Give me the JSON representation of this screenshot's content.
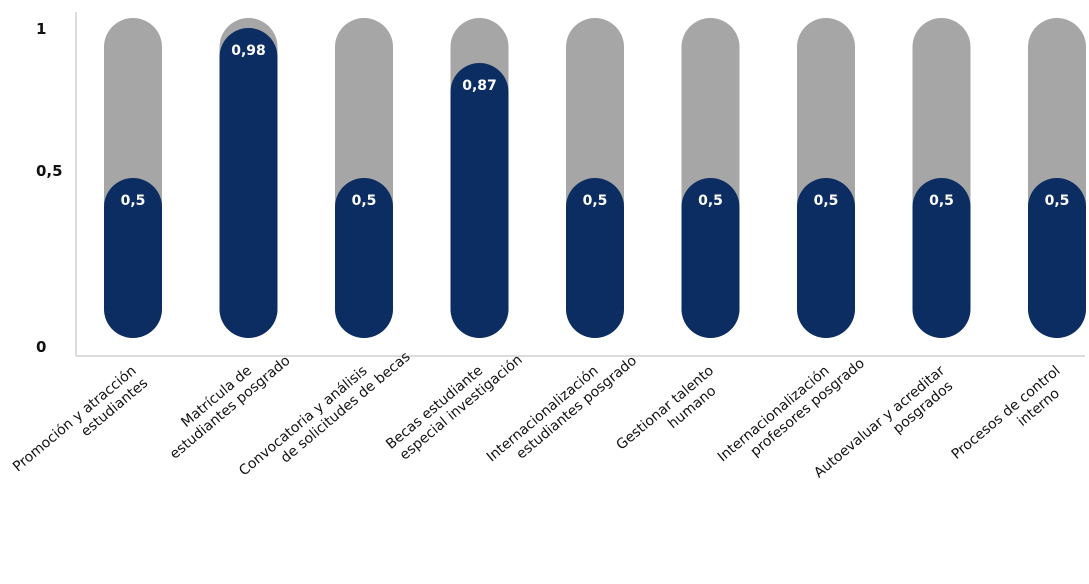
{
  "chart_data": {
    "type": "bar",
    "categories": [
      [
        "Promoción y atracción",
        "estudiantes"
      ],
      [
        "Matrícula de",
        "estudiantes posgrado"
      ],
      [
        "Convocatoria y análisis",
        "de solicitudes de becas"
      ],
      [
        "Becas estudiante",
        "especial investigación"
      ],
      [
        "Internacionalización",
        "estudiantes posgrado"
      ],
      [
        "Gestionar talento",
        "humano"
      ],
      [
        "Internacionalización",
        "profesores posgrado"
      ],
      [
        "Autoevaluar y acreditar",
        "posgrados"
      ],
      [
        "Procesos de control",
        "interno"
      ]
    ],
    "values": [
      0.5,
      0.98,
      0.5,
      0.87,
      0.5,
      0.5,
      0.5,
      0.5,
      0.5
    ],
    "value_labels": [
      "0,5",
      "0,98",
      "0,5",
      "0,87",
      "0,5",
      "0,5",
      "0,5",
      "0,5",
      "0,5"
    ],
    "max": 1,
    "ylim": [
      0,
      1
    ],
    "yticks": [
      {
        "value": 0,
        "label": "0"
      },
      {
        "value": 0.5,
        "label": "0,5"
      },
      {
        "value": 1,
        "label": "1"
      }
    ],
    "colors": {
      "value_bar": "#0c2d62",
      "background_bar": "#a6a6a6",
      "axis": "#d0d0d0"
    },
    "grid": false,
    "legend": "none"
  }
}
